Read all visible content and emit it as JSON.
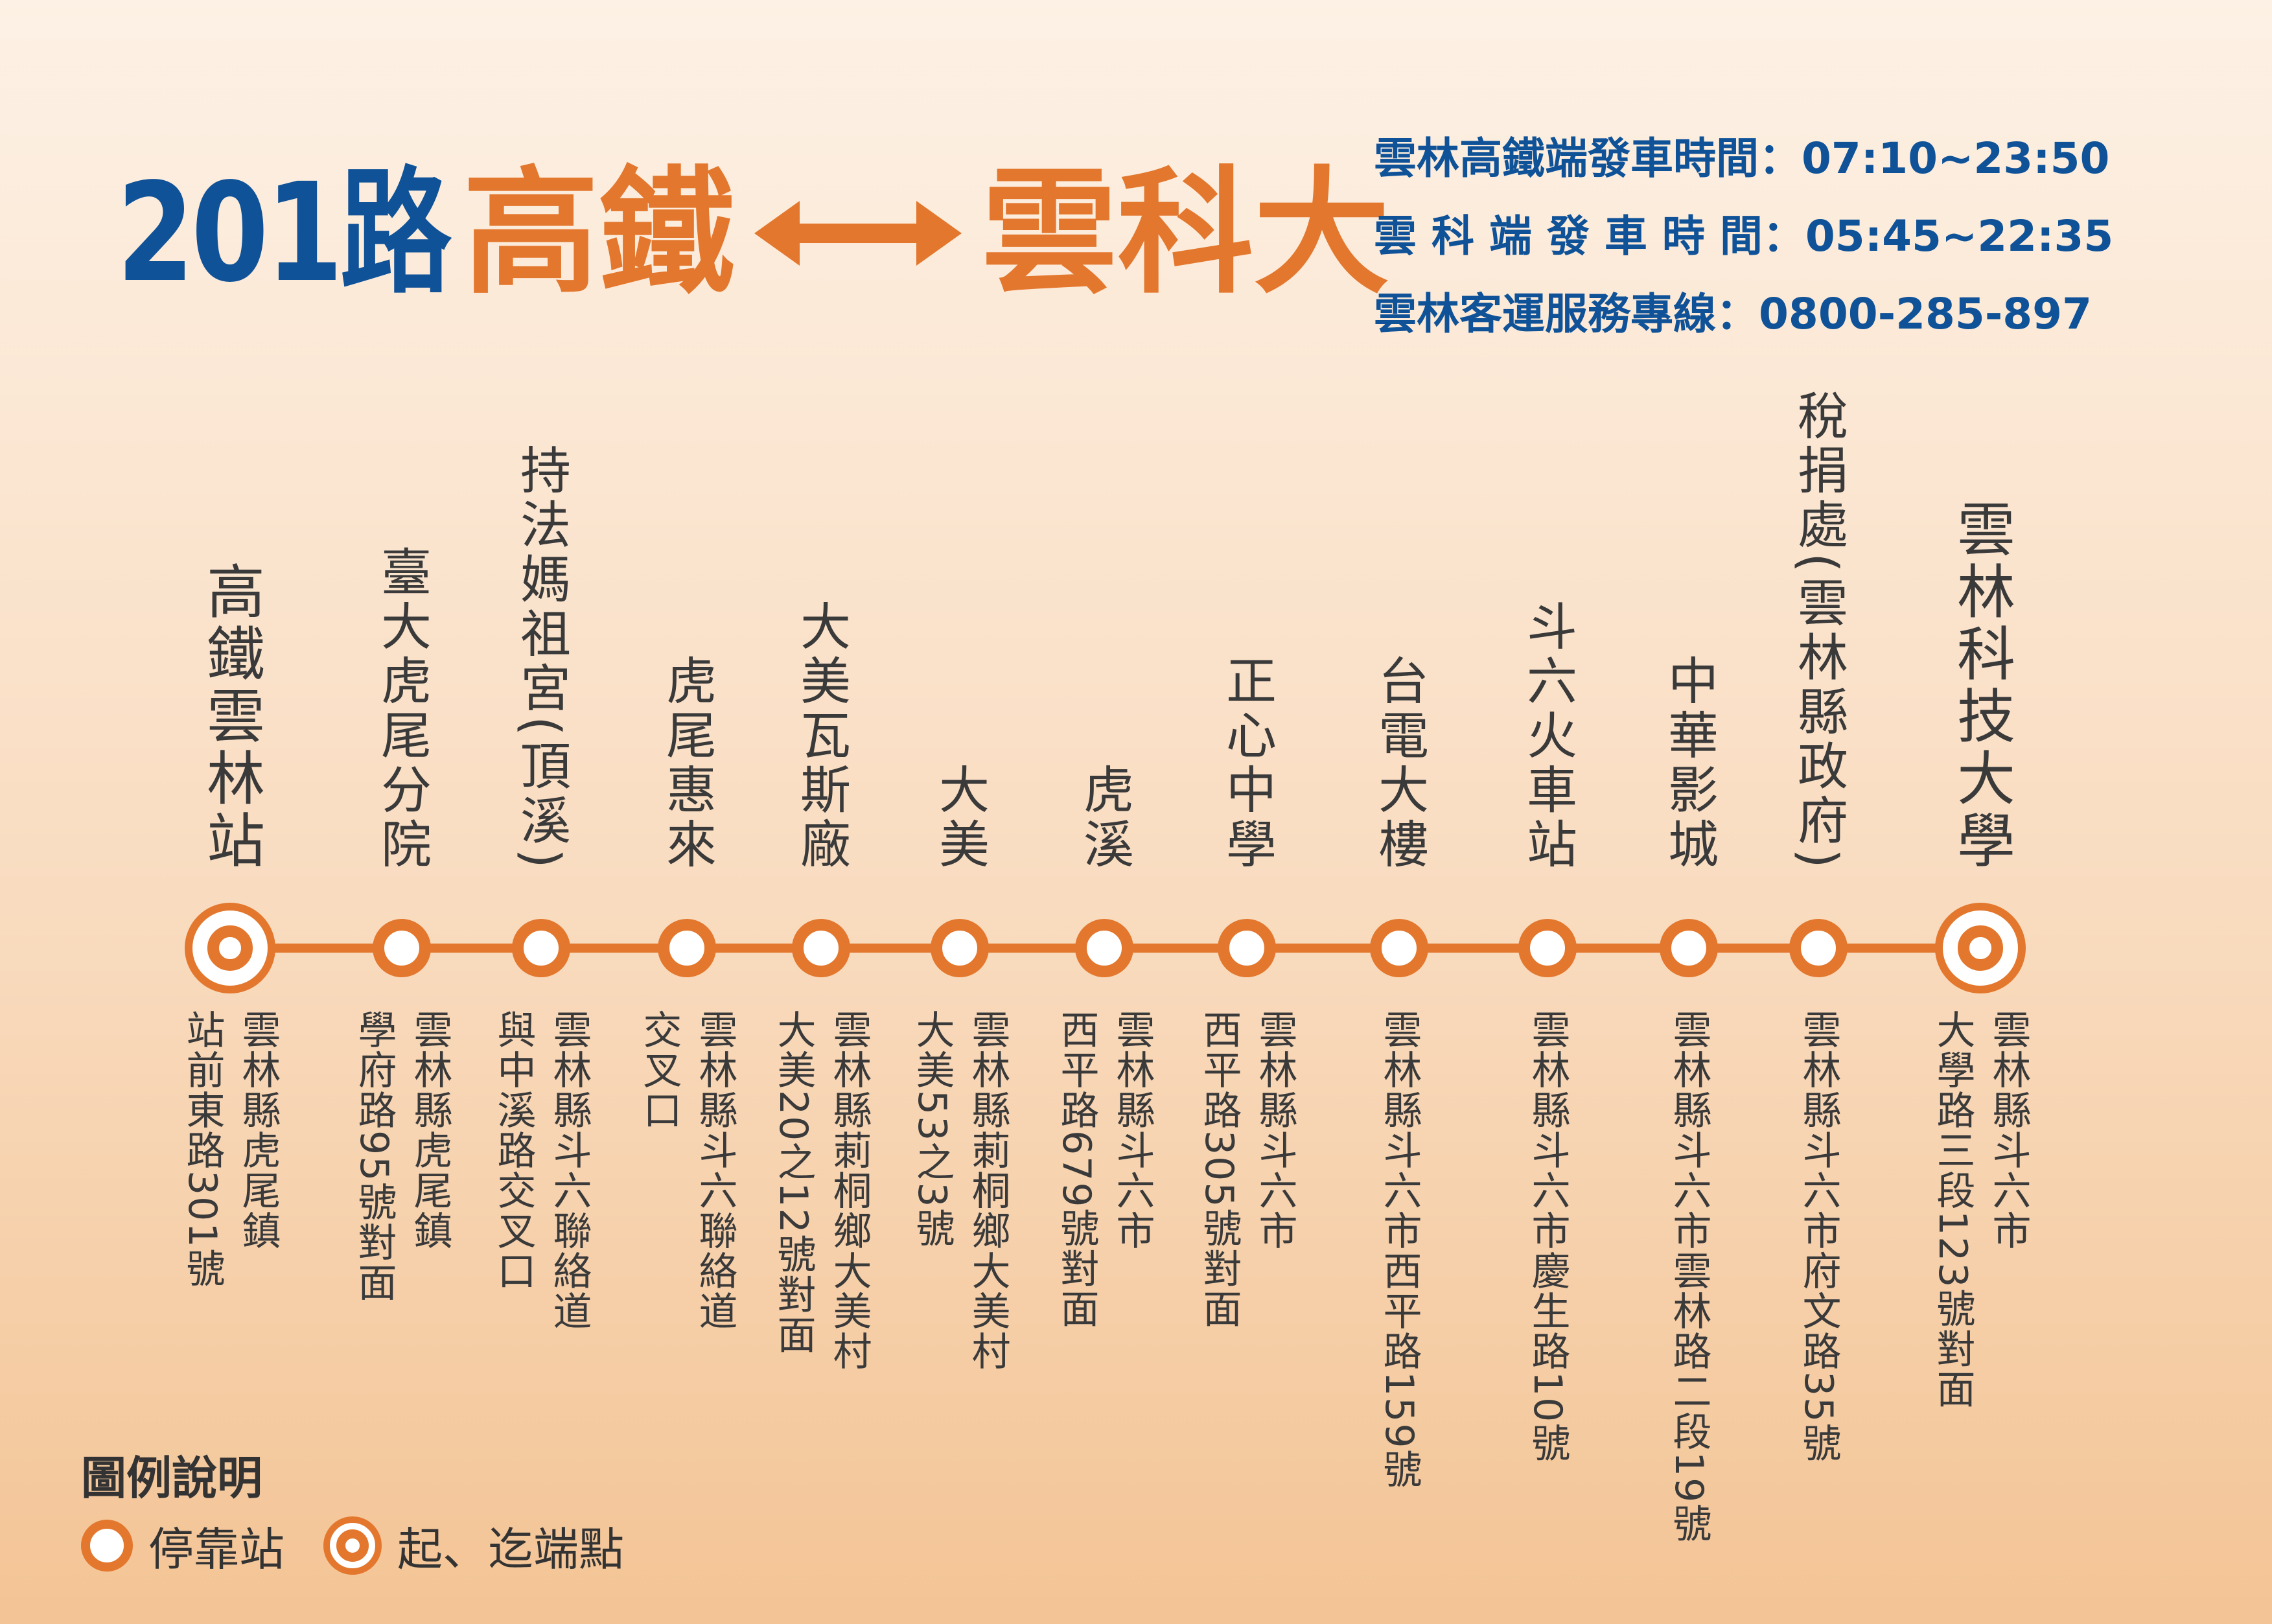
{
  "title": {
    "route": "201路",
    "origin": "高鐵",
    "destination": "雲科大"
  },
  "info": {
    "line1": "雲林高鐵端發車時間：07:10~23:50",
    "line2": "雲 科 端 發 車 時 間：05:45~22:35",
    "line3": "雲林客運服務專線：0800-285-897"
  },
  "stops": [
    {
      "name": "高鐵雲林站",
      "address": "雲林縣虎尾鎮\n站前東路301號",
      "terminal": true
    },
    {
      "name": "臺大虎尾分院",
      "address": "雲林縣虎尾鎮\n學府路95號對面",
      "terminal": false
    },
    {
      "name": "持法媽祖宮(頂溪)",
      "address": "雲林縣斗六聯絡道\n與中溪路交叉口",
      "terminal": false
    },
    {
      "name": "虎尾惠來",
      "address": "雲林縣斗六聯絡道\n交叉口",
      "terminal": false
    },
    {
      "name": "大美瓦斯廠",
      "address": "雲林縣莿桐鄉大美村\n大美20之12號對面",
      "terminal": false
    },
    {
      "name": "大美",
      "address": "雲林縣莿桐鄉大美村\n大美53之3號",
      "terminal": false
    },
    {
      "name": "虎溪",
      "address": "雲林縣斗六市\n西平路679號對面",
      "terminal": false
    },
    {
      "name": "正心中學",
      "address": "雲林縣斗六市\n西平路305號對面",
      "terminal": false
    },
    {
      "name": "台電大樓",
      "address": "雲林縣斗六市西平路159號",
      "terminal": false
    },
    {
      "name": "斗六火車站",
      "address": "雲林縣斗六市慶生路10號",
      "terminal": false
    },
    {
      "name": "中華影城",
      "address": "雲林縣斗六市雲林路二段19號",
      "terminal": false
    },
    {
      "name": "稅捐處(雲林縣政府)",
      "address": "雲林縣斗六市府文路35號",
      "terminal": false
    },
    {
      "name": "雲林科技大學",
      "address": "雲林縣斗六市\n大學路三段123號對面",
      "terminal": true
    }
  ],
  "legend": {
    "title": "圖例說明",
    "stop_label": "停靠站",
    "terminal_label": "起、迄端點"
  },
  "colors": {
    "accent": "#e3772d",
    "brand": "#0f5298"
  }
}
